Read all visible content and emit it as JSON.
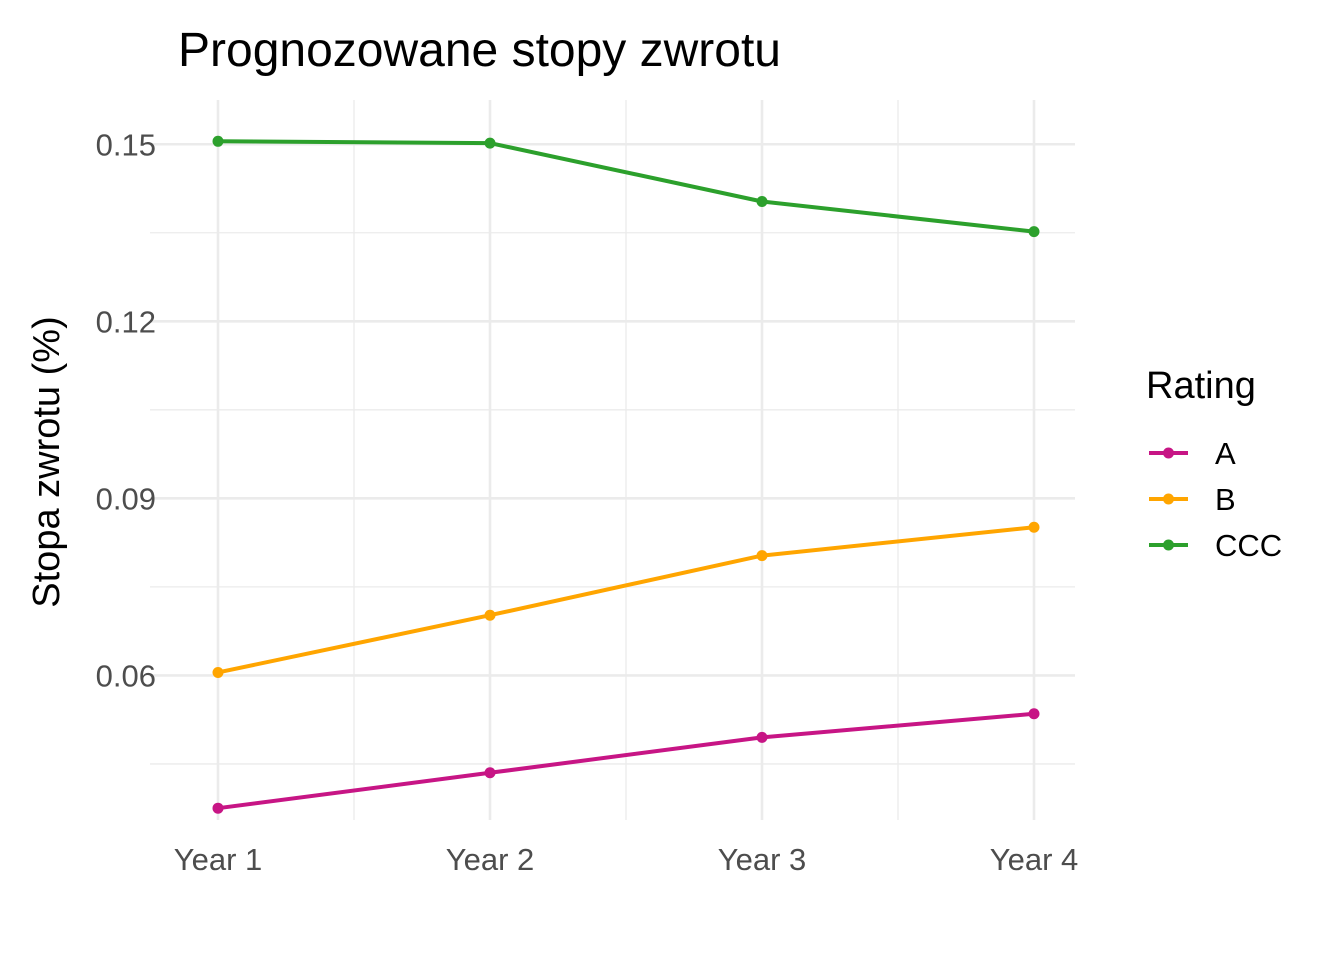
{
  "chart_data": {
    "type": "line",
    "title": "Prognozowane stopy zwrotu",
    "xlabel": "",
    "ylabel": "Stopa zwrotu (%)",
    "categories": [
      "Year 1",
      "Year 2",
      "Year 3",
      "Year 4"
    ],
    "yticks": [
      0.06,
      0.09,
      0.12,
      0.15
    ],
    "ytick_labels": [
      "0.06",
      "0.09",
      "0.12",
      "0.15"
    ],
    "ylim": [
      0.0355,
      0.1575
    ],
    "grid": true,
    "legend": {
      "title": "Rating",
      "position": "right"
    },
    "series": [
      {
        "name": "A",
        "color": "#c71585",
        "values": [
          0.0375,
          0.0435,
          0.0495,
          0.0535
        ]
      },
      {
        "name": "B",
        "color": "#ffa500",
        "values": [
          0.0605,
          0.0702,
          0.0803,
          0.0851
        ]
      },
      {
        "name": "CCC",
        "color": "#2ca02c",
        "values": [
          0.1505,
          0.1502,
          0.1403,
          0.1352
        ]
      }
    ]
  }
}
